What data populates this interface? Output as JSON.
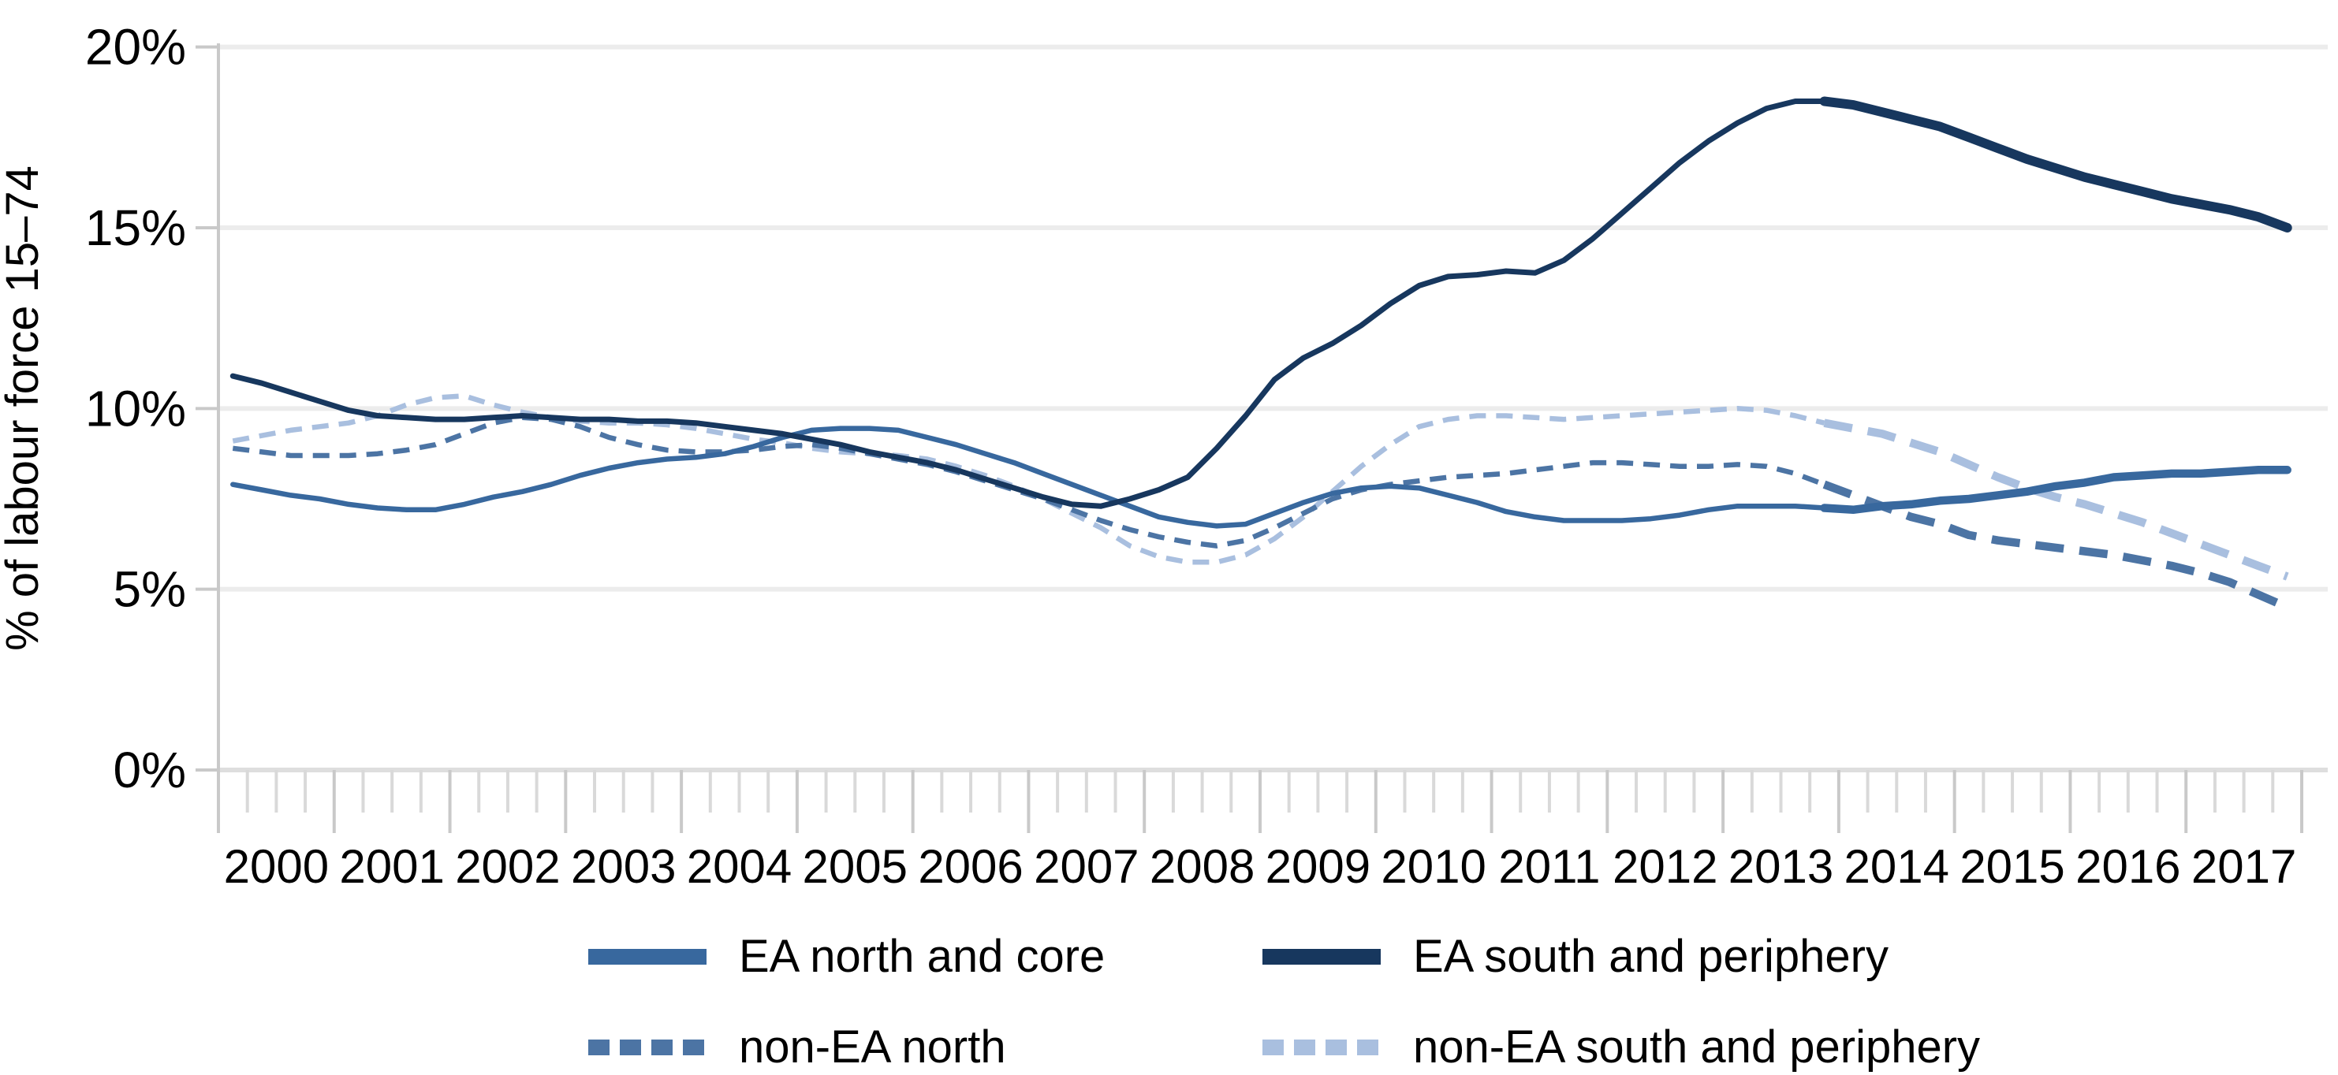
{
  "figure": {
    "background": "#ffffff",
    "axis_color": "#c9c9c9",
    "grid_color": "#ececec",
    "text_color": "#000000"
  },
  "chart_data": {
    "type": "line",
    "title": "",
    "xlabel": "",
    "ylabel": "% of labour force 15–74",
    "ylim": [
      0,
      20
    ],
    "grid": "horizontal",
    "legend_position": "bottom",
    "start_year": 2000,
    "end_year": 2017,
    "points_per_year": 4,
    "n_points": 72,
    "bold_from_index": 55,
    "y_tick_values": [
      0,
      5,
      10,
      15,
      20
    ],
    "y_ticks": [
      "0%",
      "5%",
      "10%",
      "15%",
      "20%"
    ],
    "x_tick_years": [
      "2000",
      "2001",
      "2002",
      "2003",
      "2004",
      "2005",
      "2006",
      "2007",
      "2008",
      "2009",
      "2010",
      "2011",
      "2012",
      "2013",
      "2014",
      "2015",
      "2016",
      "2017"
    ],
    "series": [
      {
        "id": "ea-north-core",
        "name": "EA north and core",
        "style": "solid",
        "color": "#38689E",
        "values": [
          7.9,
          7.75,
          7.6,
          7.5,
          7.35,
          7.25,
          7.2,
          7.2,
          7.35,
          7.55,
          7.7,
          7.9,
          8.15,
          8.35,
          8.5,
          8.6,
          8.65,
          8.75,
          8.95,
          9.2,
          9.4,
          9.45,
          9.45,
          9.4,
          9.2,
          9.0,
          8.75,
          8.5,
          8.2,
          7.9,
          7.6,
          7.3,
          7.0,
          6.85,
          6.75,
          6.8,
          7.1,
          7.4,
          7.65,
          7.8,
          7.85,
          7.8,
          7.6,
          7.4,
          7.15,
          7.0,
          6.9,
          6.9,
          6.9,
          6.95,
          7.05,
          7.2,
          7.3,
          7.3,
          7.3,
          7.25,
          7.2,
          7.3,
          7.35,
          7.45,
          7.5,
          7.6,
          7.7,
          7.85,
          7.95,
          8.1,
          8.15,
          8.2,
          8.2,
          8.25,
          8.3,
          8.3
        ]
      },
      {
        "id": "ea-south-periphery",
        "name": "EA south and periphery",
        "style": "solid",
        "color": "#17375E",
        "values": [
          10.9,
          10.7,
          10.45,
          10.2,
          9.95,
          9.8,
          9.75,
          9.7,
          9.7,
          9.75,
          9.8,
          9.75,
          9.7,
          9.7,
          9.65,
          9.65,
          9.6,
          9.5,
          9.4,
          9.3,
          9.15,
          9.0,
          8.8,
          8.65,
          8.5,
          8.3,
          8.05,
          7.8,
          7.55,
          7.35,
          7.3,
          7.5,
          7.75,
          8.1,
          8.9,
          9.8,
          10.8,
          11.4,
          11.8,
          12.3,
          12.9,
          13.4,
          13.65,
          13.7,
          13.8,
          13.75,
          14.1,
          14.7,
          15.4,
          16.1,
          16.8,
          17.4,
          17.9,
          18.3,
          18.5,
          18.5,
          18.4,
          18.2,
          18.0,
          17.8,
          17.5,
          17.2,
          16.9,
          16.65,
          16.4,
          16.2,
          16.0,
          15.8,
          15.65,
          15.5,
          15.3,
          15.0
        ]
      },
      {
        "id": "non-ea-north",
        "name": "non-EA north",
        "style": "dashed",
        "color": "#4C74A4",
        "values": [
          8.9,
          8.8,
          8.7,
          8.7,
          8.7,
          8.75,
          8.85,
          9.0,
          9.3,
          9.6,
          9.75,
          9.7,
          9.5,
          9.2,
          9.0,
          8.85,
          8.8,
          8.8,
          8.85,
          8.95,
          9.0,
          8.9,
          8.75,
          8.6,
          8.45,
          8.25,
          8.0,
          7.75,
          7.5,
          7.2,
          6.9,
          6.65,
          6.45,
          6.3,
          6.2,
          6.35,
          6.7,
          7.1,
          7.5,
          7.75,
          7.9,
          8.0,
          8.1,
          8.15,
          8.2,
          8.3,
          8.4,
          8.5,
          8.5,
          8.45,
          8.4,
          8.4,
          8.45,
          8.4,
          8.2,
          7.9,
          7.6,
          7.3,
          7.0,
          6.8,
          6.5,
          6.35,
          6.25,
          6.15,
          6.05,
          5.95,
          5.8,
          5.65,
          5.45,
          5.2,
          4.85,
          4.5
        ]
      },
      {
        "id": "non-ea-south-periphery",
        "name": "non-EA south and periphery",
        "style": "dashed",
        "color": "#A9BFDF",
        "values": [
          9.1,
          9.25,
          9.4,
          9.5,
          9.6,
          9.8,
          10.1,
          10.3,
          10.35,
          10.1,
          9.9,
          9.75,
          9.65,
          9.6,
          9.6,
          9.55,
          9.45,
          9.3,
          9.15,
          9.05,
          8.9,
          8.8,
          8.75,
          8.7,
          8.6,
          8.4,
          8.15,
          7.85,
          7.5,
          7.1,
          6.7,
          6.2,
          5.9,
          5.75,
          5.75,
          5.95,
          6.4,
          7.0,
          7.7,
          8.4,
          9.0,
          9.5,
          9.7,
          9.8,
          9.8,
          9.75,
          9.7,
          9.75,
          9.8,
          9.85,
          9.9,
          9.95,
          10.0,
          9.95,
          9.8,
          9.6,
          9.45,
          9.3,
          9.05,
          8.8,
          8.45,
          8.1,
          7.8,
          7.55,
          7.35,
          7.1,
          6.85,
          6.55,
          6.25,
          5.95,
          5.65,
          5.35
        ]
      }
    ]
  }
}
